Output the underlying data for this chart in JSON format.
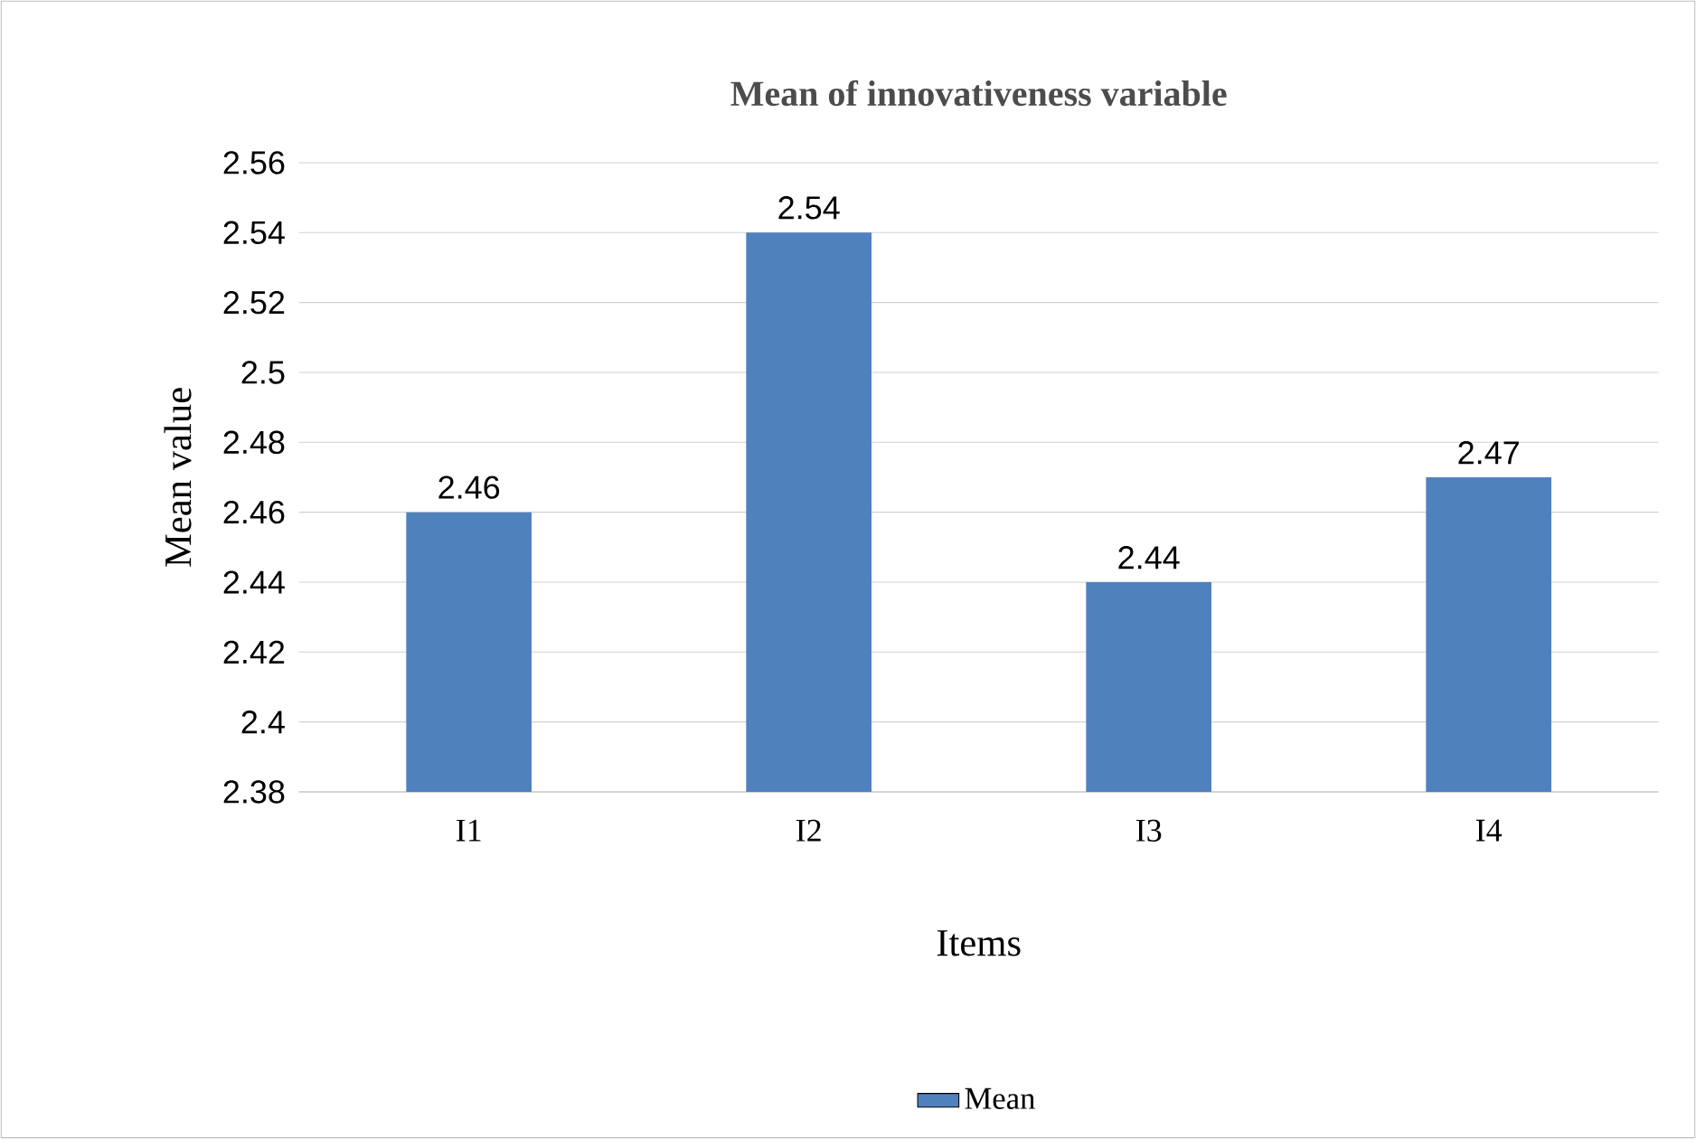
{
  "chart_data": {
    "type": "bar",
    "title": "Mean of innovativeness variable",
    "xlabel": "Items",
    "ylabel": "Mean value",
    "categories": [
      "I1",
      "I2",
      "I3",
      "I4"
    ],
    "series": [
      {
        "name": "Mean",
        "color": "#4f81bd",
        "values": [
          2.46,
          2.54,
          2.44,
          2.47
        ]
      }
    ],
    "ylim": [
      2.38,
      2.56
    ],
    "yticks": [
      2.38,
      2.4,
      2.42,
      2.44,
      2.46,
      2.48,
      2.5,
      2.52,
      2.54,
      2.56
    ],
    "grid": "y",
    "legend": "bottom",
    "data_labels": true
  }
}
